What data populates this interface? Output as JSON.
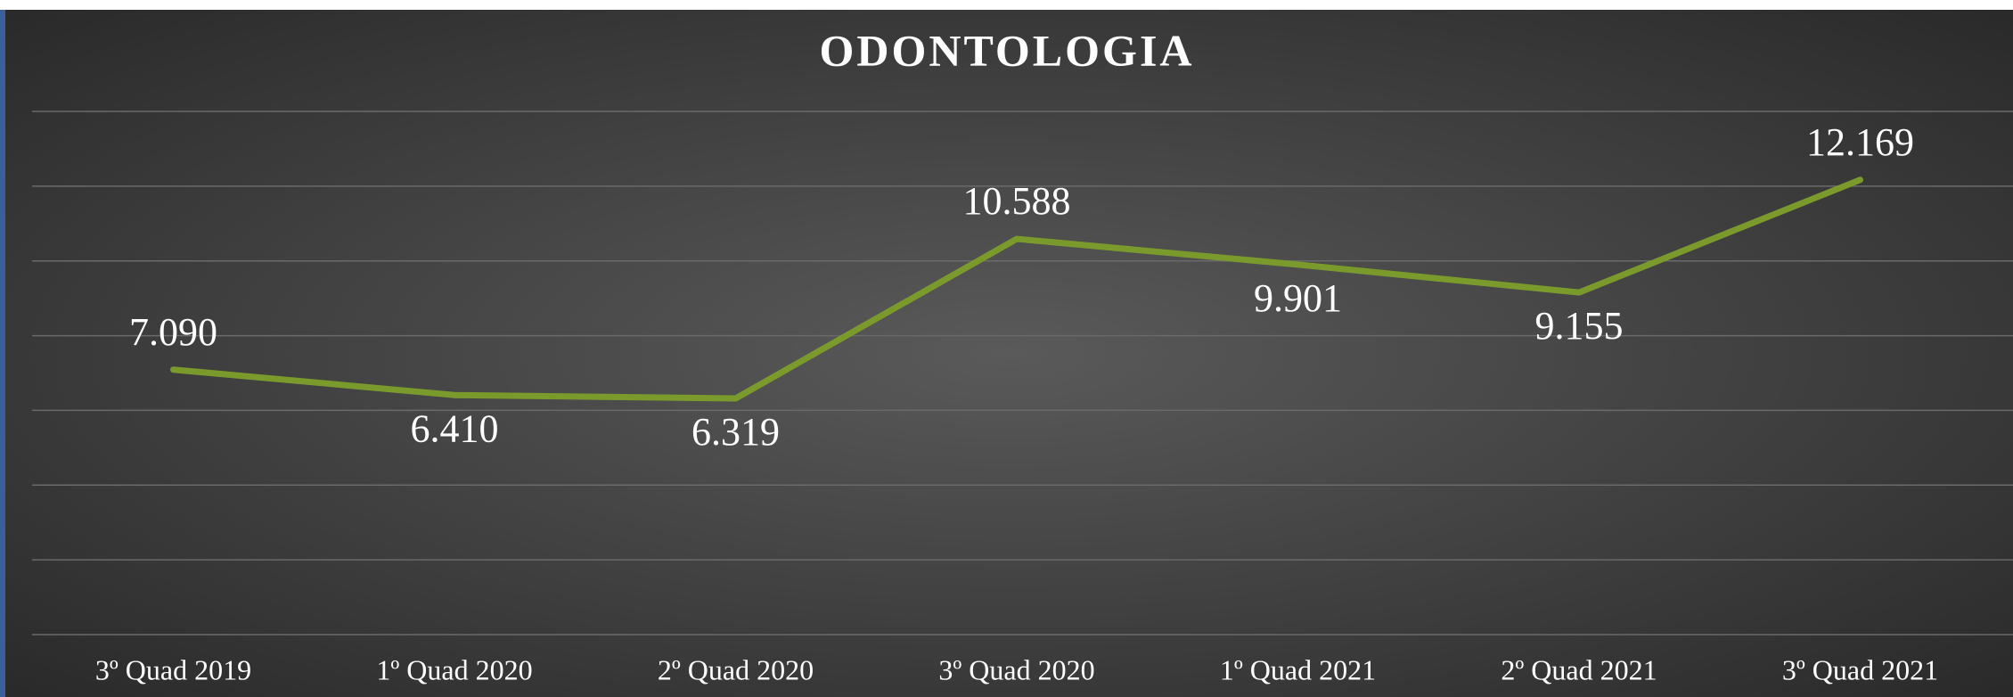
{
  "chart_data": {
    "type": "line",
    "title": "ODONTOLOGIA",
    "categories": [
      "3º Quad 2019",
      "1º Quad 2020",
      "2º Quad 2020",
      "3º Quad 2020",
      "1º Quad 2021",
      "2º Quad 2021",
      "3º Quad 2021"
    ],
    "series": [
      {
        "name": "Odontologia",
        "color": "#7b9a2c",
        "values": [
          7090,
          6410,
          6319,
          10588,
          9901,
          9155,
          12169
        ],
        "value_labels": [
          "7.090",
          "6.410",
          "6.319",
          "10.588",
          "9.901",
          "9.155",
          "12.169"
        ]
      }
    ],
    "ylim": [
      0,
      14000
    ],
    "yticks": [
      0,
      2000,
      4000,
      6000,
      8000,
      10000,
      12000,
      14000
    ],
    "grid": true
  }
}
